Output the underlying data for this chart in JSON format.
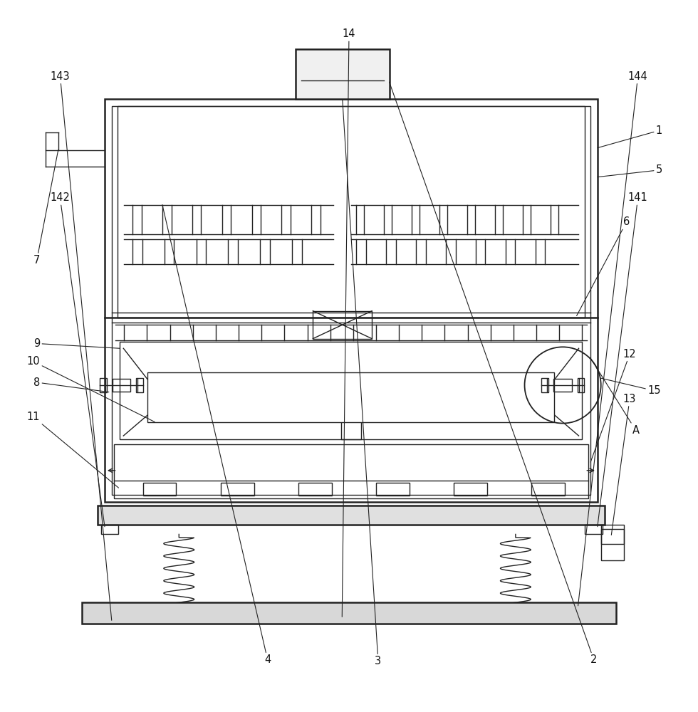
{
  "bg_color": "#ffffff",
  "line_color": "#222222",
  "lw": 1.0,
  "tlw": 1.8,
  "fig_w": 9.8,
  "fig_h": 10.0
}
